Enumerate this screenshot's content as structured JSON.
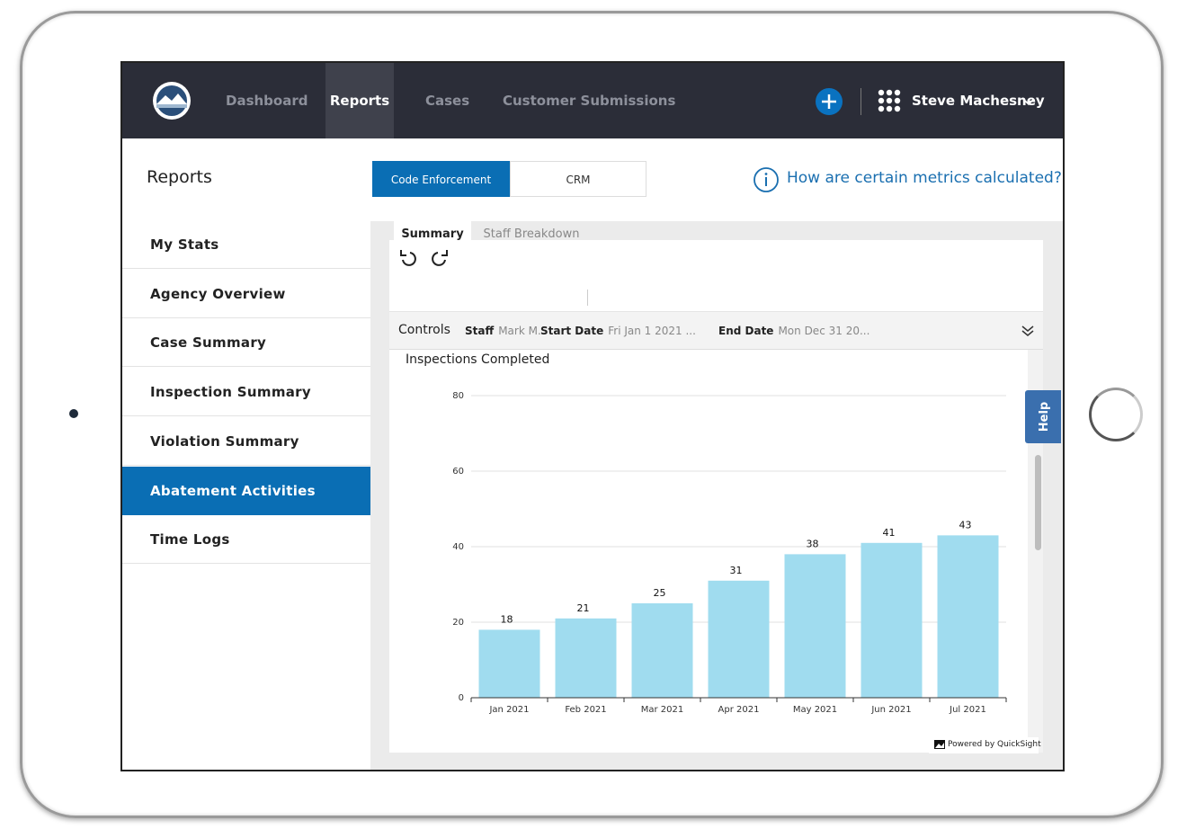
{
  "nav": {
    "items": [
      "Dashboard",
      "Reports",
      "Cases",
      "Customer Submissions"
    ],
    "active": 1,
    "user": "Steve Machesney"
  },
  "sidebar": {
    "title": "Reports",
    "items": [
      "My Stats",
      "Agency Overview",
      "Case Summary",
      "Inspection Summary",
      "Violation Summary",
      "Abatement Activities",
      "Time Logs"
    ],
    "active": 5
  },
  "tabs": {
    "items": [
      "Code Enforcement",
      "CRM"
    ],
    "active": 0
  },
  "help_link": "How are certain metrics calculated?",
  "subtabs": {
    "items": [
      "Summary",
      "Staff Breakdown"
    ],
    "active": 0
  },
  "controls": {
    "label": "Controls",
    "filters": [
      {
        "name": "Staff",
        "value": "Mark M."
      },
      {
        "name": "Start Date",
        "value": "Fri Jan 1 2021 ..."
      },
      {
        "name": "End Date",
        "value": "Mon Dec 31 20..."
      }
    ]
  },
  "chart_data": {
    "type": "bar",
    "title": "Inspections Completed",
    "categories": [
      "Jan 2021",
      "Feb 2021",
      "Mar 2021",
      "Apr 2021",
      "May 2021",
      "Jun 2021",
      "Jul 2021"
    ],
    "values": [
      18,
      21,
      25,
      31,
      38,
      41,
      43
    ],
    "color": "#a0dcef",
    "ylim": [
      0,
      80
    ],
    "yticks": [
      0,
      20,
      40,
      60,
      80
    ],
    "grid": true
  },
  "footer": "Powered by QuickSight",
  "help_tab": "Help"
}
